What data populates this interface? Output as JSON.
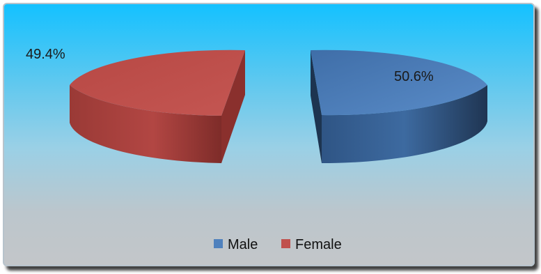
{
  "chart_data": {
    "type": "pie",
    "style": "3d-exploded",
    "slices": [
      {
        "name": "Male",
        "value": 50.6,
        "label": "50.6%",
        "color": "#4f81bd"
      },
      {
        "name": "Female",
        "value": 49.4,
        "label": "49.4%",
        "color": "#c0504d"
      }
    ],
    "legend_position": "bottom"
  }
}
